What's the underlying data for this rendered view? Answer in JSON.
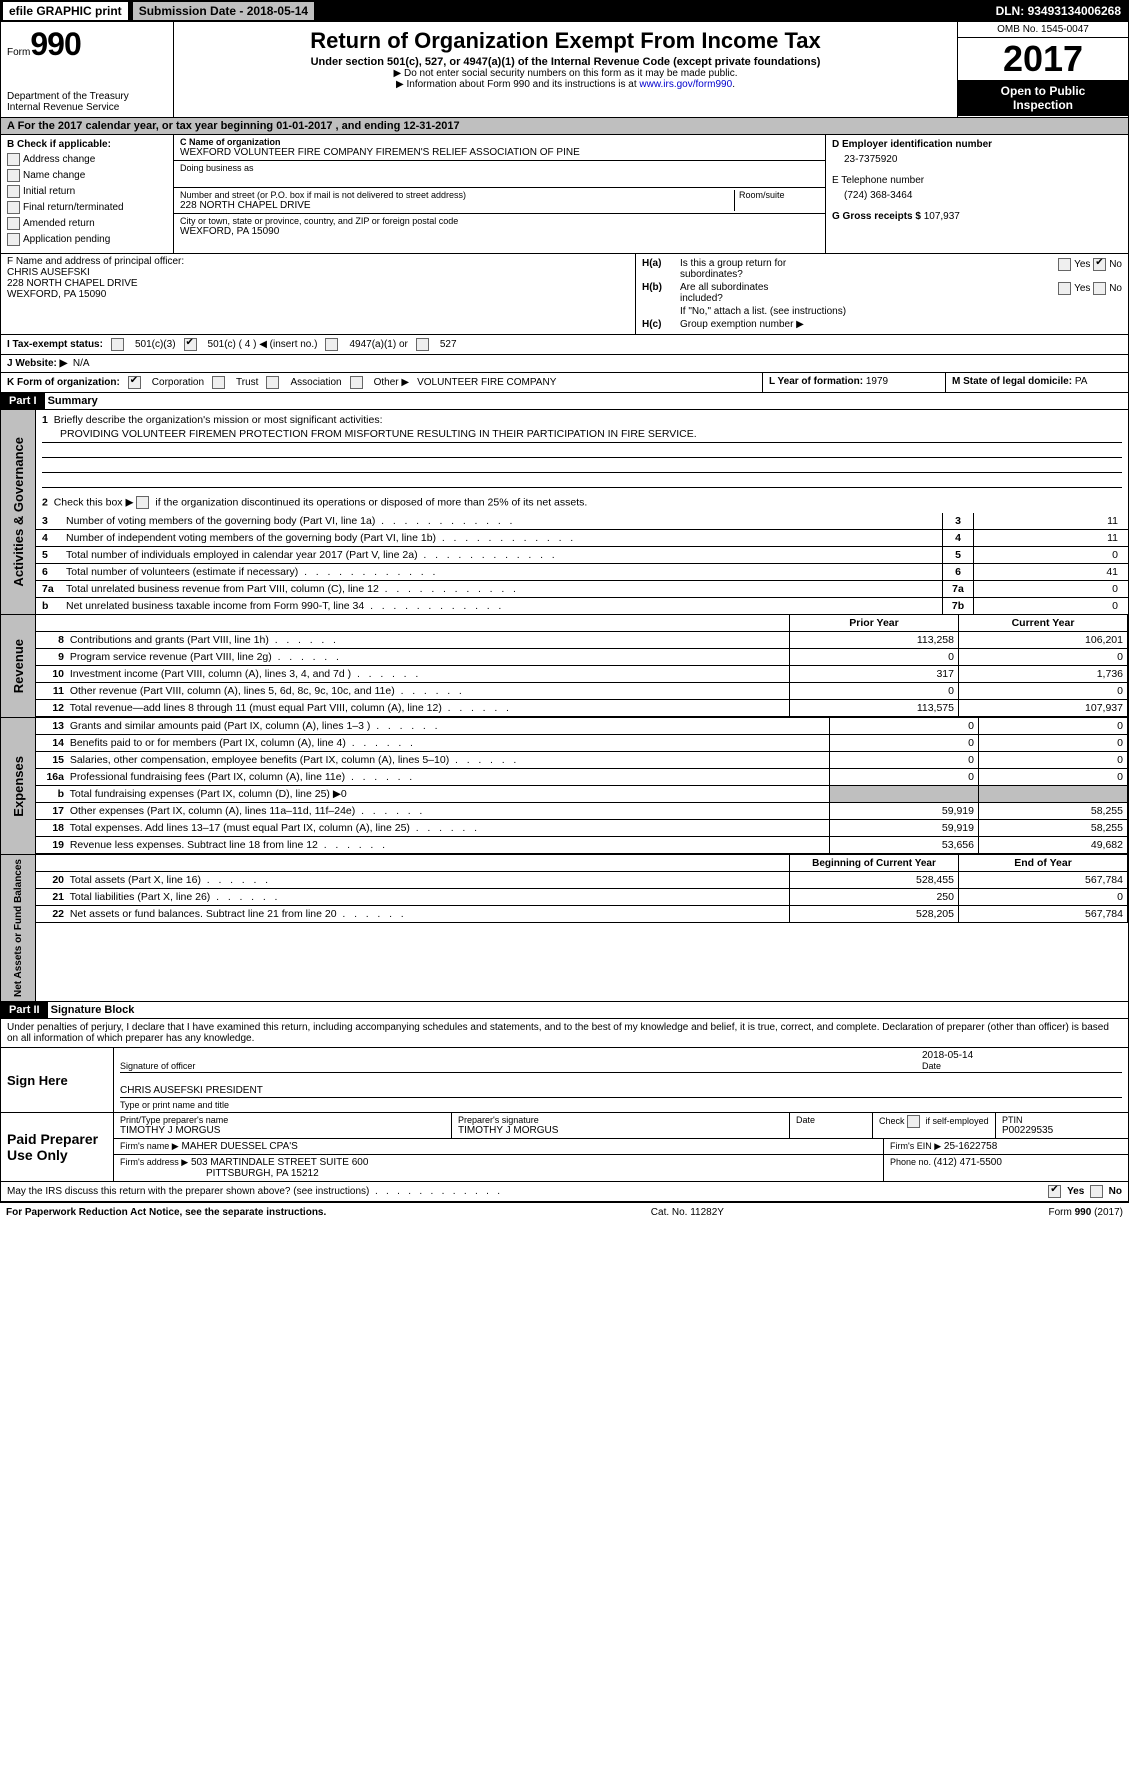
{
  "topbar": {
    "efile": "efile GRAPHIC print",
    "subdate_lbl": "Submission Date - ",
    "subdate": "2018-05-14",
    "dln_lbl": "DLN: ",
    "dln": "93493134006268"
  },
  "header": {
    "form_sm": "Form",
    "form_no": "990",
    "dept1": "Department of the Treasury",
    "dept2": "Internal Revenue Service",
    "title": "Return of Organization Exempt From Income Tax",
    "sub": "Under section 501(c), 527, or 4947(a)(1) of the Internal Revenue Code (except private foundations)",
    "arrow1": "▶ Do not enter social security numbers on this form as it may be made public.",
    "arrow2": "▶ Information about Form 990 and its instructions is at ",
    "link": "www.irs.gov/form990",
    "omb": "OMB No. 1545-0047",
    "year": "2017",
    "open1": "Open to Public",
    "open2": "Inspection"
  },
  "A": {
    "text": "A  For the 2017 calendar year, or tax year beginning 01-01-2017   , and ending 12-31-2017"
  },
  "B": {
    "hdr": "B Check if applicable:",
    "items": [
      "Address change",
      "Name change",
      "Initial return",
      "Final return/terminated",
      "Amended return",
      "Application pending"
    ]
  },
  "C": {
    "lbl": "C Name of organization",
    "name": "WEXFORD VOLUNTEER FIRE COMPANY FIREMEN'S RELIEF ASSOCIATION OF PINE",
    "dba_lbl": "Doing business as",
    "dba": "",
    "addr_lbl": "Number and street (or P.O. box if mail is not delivered to street address)",
    "room": "Room/suite",
    "addr": "228 NORTH CHAPEL DRIVE",
    "city_lbl": "City or town, state or province, country, and ZIP or foreign postal code",
    "city": "WEXFORD, PA  15090"
  },
  "D": {
    "lbl": "D Employer identification number",
    "val": "23-7375920"
  },
  "E": {
    "lbl": "E Telephone number",
    "val": "(724) 368-3464"
  },
  "G": {
    "lbl": "G Gross receipts $ ",
    "val": "107,937"
  },
  "F": {
    "lbl": "F  Name and address of principal officer:",
    "name": "CHRIS AUSEFSKI",
    "addr": "228 NORTH CHAPEL DRIVE",
    "city": "WEXFORD, PA  15090"
  },
  "H": {
    "a": "Is this a group return for",
    "a2": "subordinates?",
    "yes": "Yes",
    "no": "No",
    "b": "Are all subordinates",
    "b2": "included?",
    "note": "If \"No,\" attach a list. (see instructions)",
    "c": "Group exemption number ▶"
  },
  "I": {
    "lbl": "I  Tax-exempt status:",
    "o1": "501(c)(3)",
    "o2": "501(c) (",
    "o2n": "4",
    "o2e": ") ◀ (insert no.)",
    "o3": "4947(a)(1) or",
    "o4": "527"
  },
  "J": {
    "lbl": "J  Website: ▶",
    "val": "N/A"
  },
  "K": {
    "lbl": "K Form of organization:",
    "o1": "Corporation",
    "o2": "Trust",
    "o3": "Association",
    "o4": "Other ▶",
    "other": "VOLUNTEER FIRE COMPANY"
  },
  "L": {
    "lbl": "L Year of formation: ",
    "val": "1979"
  },
  "M": {
    "lbl": "M State of legal domicile: ",
    "val": "PA"
  },
  "part1": {
    "lbl": "Part I",
    "title": "Summary"
  },
  "summary": {
    "q1": "Briefly describe the organization's mission or most significant activities:",
    "mission": "PROVIDING VOLUNTEER FIREMEN PROTECTION FROM MISFORTUNE RESULTING IN THEIR PARTICIPATION IN FIRE SERVICE.",
    "q2": "Check this box ▶",
    "q2b": "if the organization discontinued its operations or disposed of more than 25% of its net assets.",
    "rows_gov": [
      {
        "n": "3",
        "t": "Number of voting members of the governing body (Part VI, line 1a)",
        "c": "3",
        "v": "11"
      },
      {
        "n": "4",
        "t": "Number of independent voting members of the governing body (Part VI, line 1b)",
        "c": "4",
        "v": "11"
      },
      {
        "n": "5",
        "t": "Total number of individuals employed in calendar year 2017 (Part V, line 2a)",
        "c": "5",
        "v": "0"
      },
      {
        "n": "6",
        "t": "Total number of volunteers (estimate if necessary)",
        "c": "6",
        "v": "41"
      },
      {
        "n": "7a",
        "t": "Total unrelated business revenue from Part VIII, column (C), line 12",
        "c": "7a",
        "v": "0"
      },
      {
        "n": "b",
        "t": "Net unrelated business taxable income from Form 990-T, line 34",
        "c": "7b",
        "v": "0"
      }
    ],
    "hdr_prior": "Prior Year",
    "hdr_curr": "Current Year",
    "rows_rev": [
      {
        "n": "8",
        "t": "Contributions and grants (Part VIII, line 1h)",
        "p": "113,258",
        "c": "106,201"
      },
      {
        "n": "9",
        "t": "Program service revenue (Part VIII, line 2g)",
        "p": "0",
        "c": "0"
      },
      {
        "n": "10",
        "t": "Investment income (Part VIII, column (A), lines 3, 4, and 7d )",
        "p": "317",
        "c": "1,736"
      },
      {
        "n": "11",
        "t": "Other revenue (Part VIII, column (A), lines 5, 6d, 8c, 9c, 10c, and 11e)",
        "p": "0",
        "c": "0"
      },
      {
        "n": "12",
        "t": "Total revenue—add lines 8 through 11 (must equal Part VIII, column (A), line 12)",
        "p": "113,575",
        "c": "107,937"
      }
    ],
    "rows_exp": [
      {
        "n": "13",
        "t": "Grants and similar amounts paid (Part IX, column (A), lines 1–3 )",
        "p": "0",
        "c": "0"
      },
      {
        "n": "14",
        "t": "Benefits paid to or for members (Part IX, column (A), line 4)",
        "p": "0",
        "c": "0"
      },
      {
        "n": "15",
        "t": "Salaries, other compensation, employee benefits (Part IX, column (A), lines 5–10)",
        "p": "0",
        "c": "0"
      },
      {
        "n": "16a",
        "t": "Professional fundraising fees (Part IX, column (A), line 11e)",
        "p": "0",
        "c": "0"
      },
      {
        "n": "b",
        "t": "Total fundraising expenses (Part IX, column (D), line 25) ▶0",
        "shade": true
      },
      {
        "n": "17",
        "t": "Other expenses (Part IX, column (A), lines 11a–11d, 11f–24e)",
        "p": "59,919",
        "c": "58,255"
      },
      {
        "n": "18",
        "t": "Total expenses. Add lines 13–17 (must equal Part IX, column (A), line 25)",
        "p": "59,919",
        "c": "58,255"
      },
      {
        "n": "19",
        "t": "Revenue less expenses. Subtract line 18 from line 12",
        "p": "53,656",
        "c": "49,682"
      }
    ],
    "hdr_beg": "Beginning of Current Year",
    "hdr_end": "End of Year",
    "rows_net": [
      {
        "n": "20",
        "t": "Total assets (Part X, line 16)",
        "p": "528,455",
        "c": "567,784"
      },
      {
        "n": "21",
        "t": "Total liabilities (Part X, line 26)",
        "p": "250",
        "c": "0"
      },
      {
        "n": "22",
        "t": "Net assets or fund balances. Subtract line 21 from line 20",
        "p": "528,205",
        "c": "567,784"
      }
    ],
    "vlabels": {
      "gov": "Activities & Governance",
      "rev": "Revenue",
      "exp": "Expenses",
      "net": "Net Assets or\nFund Balances"
    }
  },
  "part2": {
    "lbl": "Part II",
    "title": "Signature Block",
    "decl": "Under penalties of perjury, I declare that I have examined this return, including accompanying schedules and statements, and to the best of my knowledge and belief, it is true, correct, and complete. Declaration of preparer (other than officer) is based on all information of which preparer has any knowledge.",
    "sign": "Sign Here",
    "sigof": "Signature of officer",
    "date": "Date",
    "sigdate": "2018-05-14",
    "typed": "CHRIS AUSEFSKI PRESIDENT",
    "typed_lbl": "Type or print name and title",
    "paid": "Paid Preparer Use Only",
    "prep_name_lbl": "Print/Type preparer's name",
    "prep_name": "TIMOTHY J MORGUS",
    "prep_sig_lbl": "Preparer's signature",
    "prep_sig": "TIMOTHY J MORGUS",
    "prep_date": "Date",
    "self": "Check",
    "self2": "if self-employed",
    "ptin_lbl": "PTIN",
    "ptin": "P00229535",
    "firm_lbl": "Firm's name   ▶",
    "firm": "MAHER DUESSEL CPA'S",
    "ein_lbl": "Firm's EIN ▶",
    "ein": "25-1622758",
    "addr_lbl": "Firm's address ▶",
    "addr": "503 MARTINDALE STREET SUITE 600",
    "city": "PITTSBURGH, PA  15212",
    "phone_lbl": "Phone no. ",
    "phone": "(412) 471-5500",
    "discuss": "May the IRS discuss this return with the preparer shown above? (see instructions)"
  },
  "footer": {
    "l": "For Paperwork Reduction Act Notice, see the separate instructions.",
    "c": "Cat. No. 11282Y",
    "r": "Form 990 (2017)"
  }
}
